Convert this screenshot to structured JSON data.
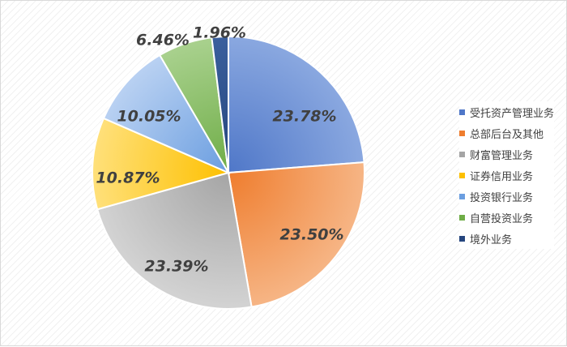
{
  "chart_data": {
    "type": "pie",
    "title": "",
    "legend_position": "right",
    "slices": [
      {
        "name": "受托资产管理业务",
        "value": 23.78,
        "label": "23.78%",
        "color": "#4f77c8",
        "color_light": "#8aa8e0"
      },
      {
        "name": "总部后台及其他",
        "value": 23.5,
        "label": "23.50%",
        "color": "#ef7d2e",
        "color_light": "#f6b585"
      },
      {
        "name": "财富管理业务",
        "value": 23.39,
        "label": "23.39%",
        "color": "#a5a5a5",
        "color_light": "#d3d3d3"
      },
      {
        "name": "证券信用业务",
        "value": 10.87,
        "label": "10.87%",
        "color": "#fdc000",
        "color_light": "#ffe07a"
      },
      {
        "name": "投资银行业务",
        "value": 10.05,
        "label": "10.05%",
        "color": "#6b9ee0",
        "color_light": "#b9d1f2"
      },
      {
        "name": "自营投资业务",
        "value": 6.46,
        "label": "6.46%",
        "color": "#6fad47",
        "color_light": "#a9d18e"
      },
      {
        "name": "境外业务",
        "value": 1.96,
        "label": "1.96%",
        "color": "#26467e",
        "color_light": "#3a5f9d"
      }
    ]
  }
}
